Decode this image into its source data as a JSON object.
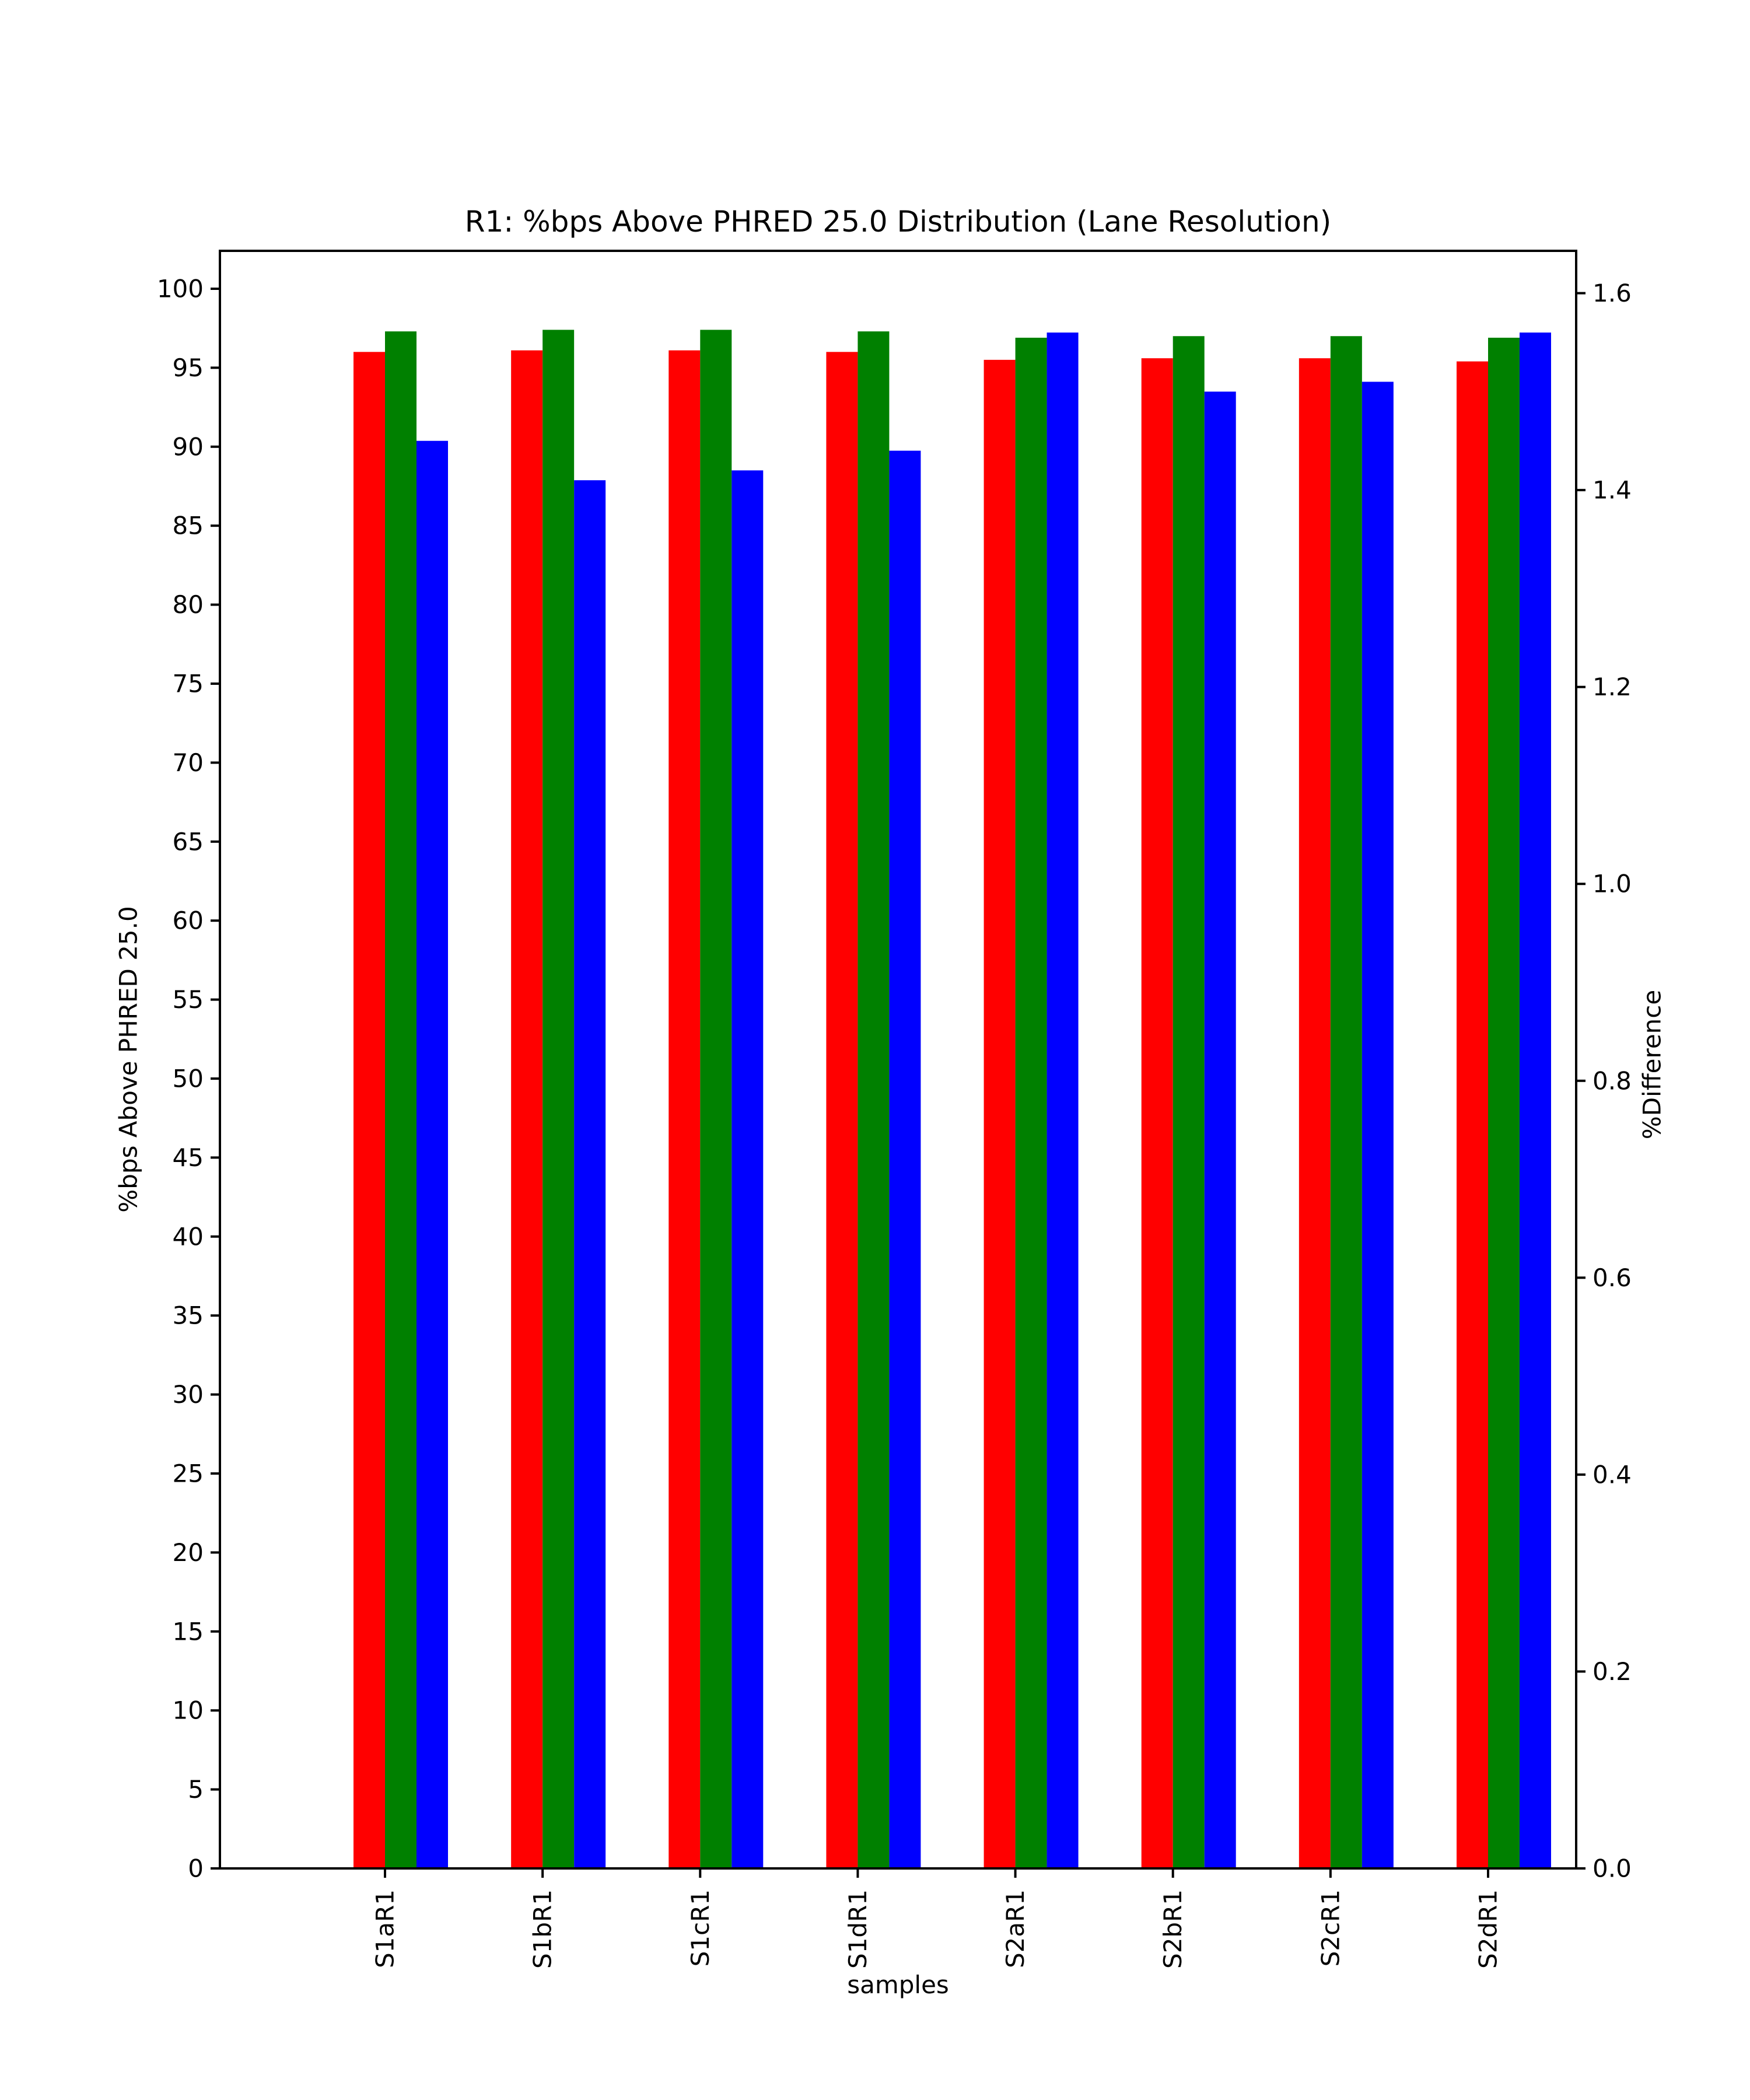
{
  "figure": {
    "background": "#ffffff",
    "text_color": "#000000"
  },
  "chart_data": {
    "type": "bar",
    "title": "R1: %bps Above PHRED 25.0 Distribution (Lane Resolution)",
    "xlabel": "samples",
    "ylabel_left": "%bps Above PHRED 25.0",
    "ylabel_right": "%Difference",
    "categories": [
      "S1aR1",
      "S1bR1",
      "S1cR1",
      "S1dR1",
      "S2aR1",
      "S2bR1",
      "S2cR1",
      "S2dR1"
    ],
    "series": [
      {
        "name": "red-left-axis",
        "axis": "left",
        "color": "#ff0000",
        "values": [
          96.0,
          96.1,
          96.1,
          96.0,
          95.5,
          95.6,
          95.6,
          95.4
        ]
      },
      {
        "name": "green-left-axis",
        "axis": "left",
        "color": "#008000",
        "values": [
          97.3,
          97.4,
          97.4,
          97.3,
          96.9,
          97.0,
          97.0,
          96.9
        ]
      },
      {
        "name": "blue-right-axis",
        "axis": "right",
        "color": "#0000ff",
        "values": [
          1.45,
          1.41,
          1.42,
          1.44,
          1.56,
          1.5,
          1.51,
          1.56
        ]
      }
    ],
    "ylim_left": [
      0,
      102.4
    ],
    "ylim_right": [
      0,
      1.643
    ],
    "yticks_left": [
      0,
      5,
      10,
      15,
      20,
      25,
      30,
      35,
      40,
      45,
      50,
      55,
      60,
      65,
      70,
      75,
      80,
      85,
      90,
      95,
      100
    ],
    "yticks_right": [
      "0.0",
      "0.2",
      "0.4",
      "0.6",
      "0.8",
      "1.0",
      "1.2",
      "1.4",
      "1.6"
    ],
    "grid": false,
    "legend": null
  }
}
